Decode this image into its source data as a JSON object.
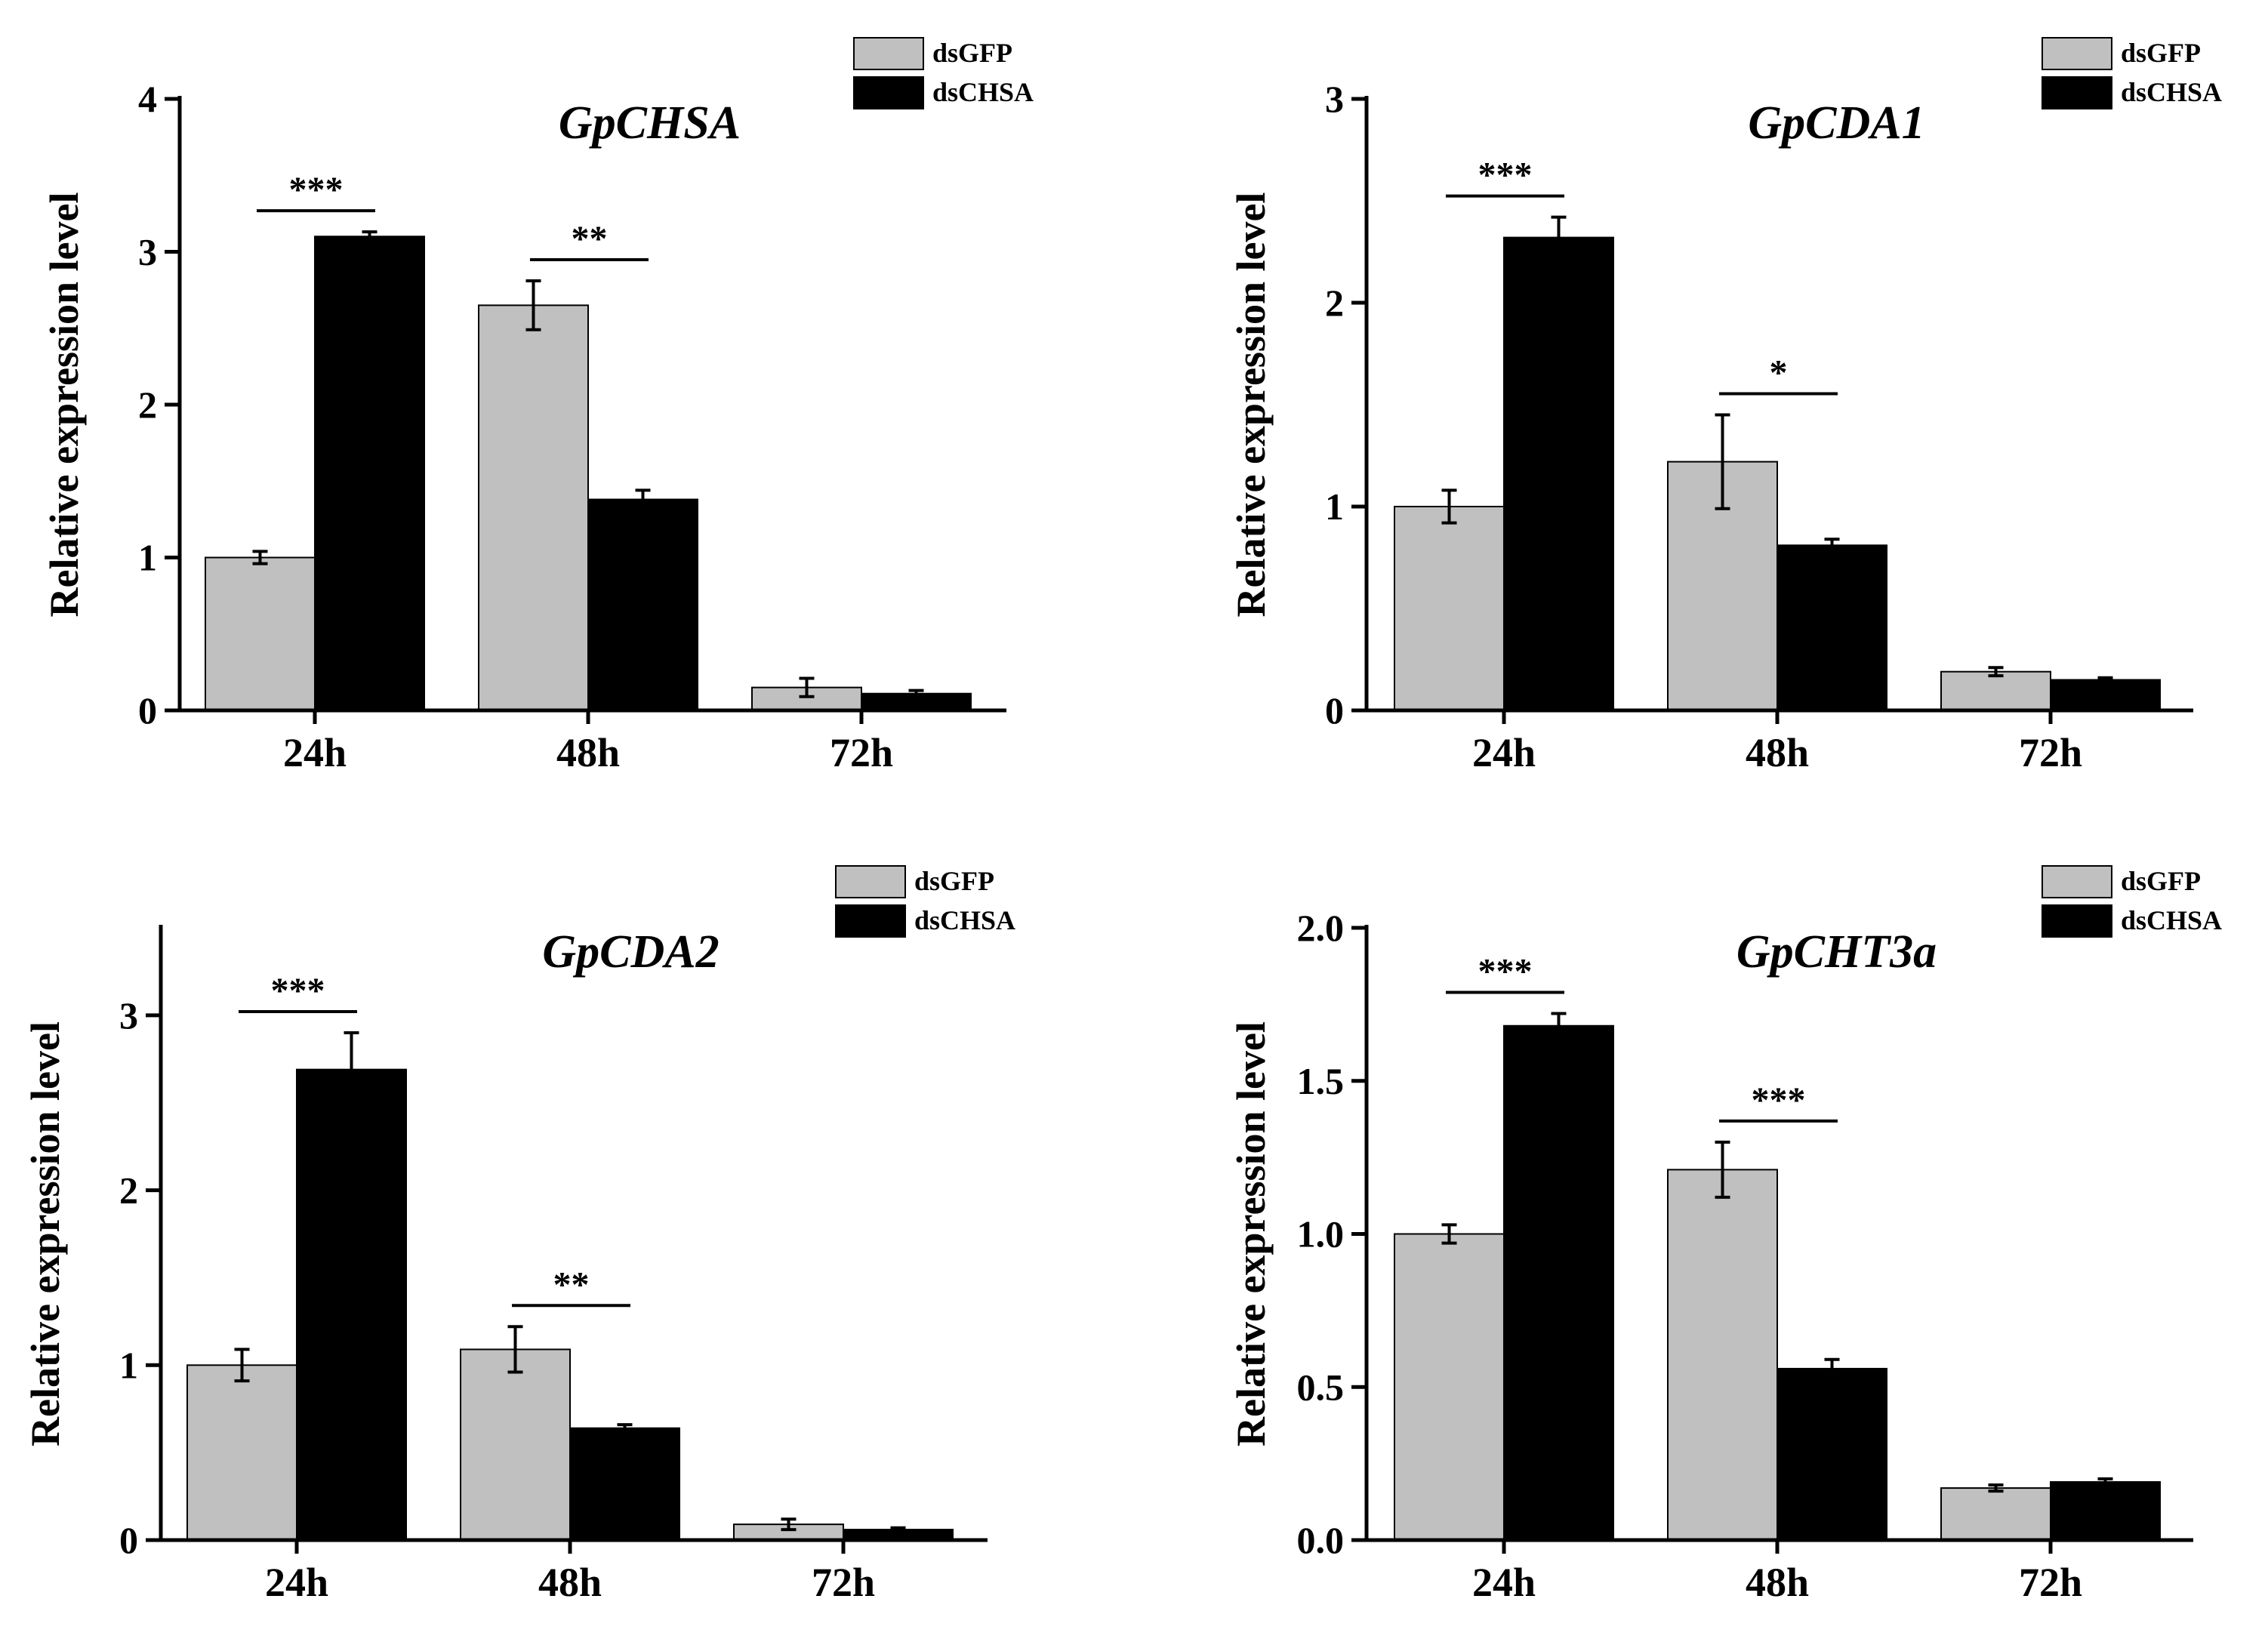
{
  "colors": {
    "dsGFP": "#c0c0c0",
    "dsCHSA": "#000000",
    "axis": "#000000"
  },
  "chart_data": [
    {
      "type": "bar",
      "title": "GpCHSA",
      "ylabel": "Relative expression level",
      "xlabel": "",
      "categories": [
        "24h",
        "48h",
        "72h"
      ],
      "ylim": [
        0,
        4
      ],
      "yticks": [
        0,
        1,
        2,
        3,
        4
      ],
      "ytick_labels": [
        "0",
        "1",
        "2",
        "3",
        "4"
      ],
      "legend": [
        "dsGFP",
        "dsCHSA"
      ],
      "legend_position": "top-right",
      "series": [
        {
          "name": "dsGFP",
          "values": [
            1.0,
            2.65,
            0.15
          ],
          "errors": [
            0.04,
            0.16,
            0.06
          ]
        },
        {
          "name": "dsCHSA",
          "values": [
            3.1,
            1.38,
            0.11
          ],
          "errors": [
            0.03,
            0.06,
            0.02
          ]
        }
      ],
      "significance": [
        {
          "category": "24h",
          "label": "***"
        },
        {
          "category": "48h",
          "label": "**"
        }
      ]
    },
    {
      "type": "bar",
      "title": "GpCDA1",
      "ylabel": "Relative expression level",
      "xlabel": "",
      "categories": [
        "24h",
        "48h",
        "72h"
      ],
      "ylim": [
        0,
        3
      ],
      "yticks": [
        0,
        1,
        2,
        3
      ],
      "ytick_labels": [
        "0",
        "1",
        "2",
        "3"
      ],
      "legend": [
        "dsGFP",
        "dsCHSA"
      ],
      "legend_position": "top-right",
      "series": [
        {
          "name": "dsGFP",
          "values": [
            1.0,
            1.22,
            0.19
          ],
          "errors": [
            0.08,
            0.23,
            0.02
          ]
        },
        {
          "name": "dsCHSA",
          "values": [
            2.32,
            0.81,
            0.15
          ],
          "errors": [
            0.1,
            0.03,
            0.01
          ]
        }
      ],
      "significance": [
        {
          "category": "24h",
          "label": "***"
        },
        {
          "category": "48h",
          "label": "*"
        }
      ]
    },
    {
      "type": "bar",
      "title": "GpCDA2",
      "ylabel": "Relative expression level",
      "xlabel": "",
      "categories": [
        "24h",
        "48h",
        "72h"
      ],
      "ylim": [
        0,
        3.5
      ],
      "yticks": [
        0,
        1,
        2,
        3
      ],
      "ytick_labels": [
        "0",
        "1",
        "2",
        "3"
      ],
      "legend": [
        "dsGFP",
        "dsCHSA"
      ],
      "legend_position": "top-right",
      "series": [
        {
          "name": "dsGFP",
          "values": [
            1.0,
            1.09,
            0.09
          ],
          "errors": [
            0.09,
            0.13,
            0.03
          ]
        },
        {
          "name": "dsCHSA",
          "values": [
            2.69,
            0.64,
            0.06
          ],
          "errors": [
            0.21,
            0.02,
            0.01
          ]
        }
      ],
      "significance": [
        {
          "category": "24h",
          "label": "***"
        },
        {
          "category": "48h",
          "label": "**"
        }
      ]
    },
    {
      "type": "bar",
      "title": "GpCHT3a",
      "ylabel": "Relative expression level",
      "xlabel": "",
      "categories": [
        "24h",
        "48h",
        "72h"
      ],
      "ylim": [
        0,
        2.0
      ],
      "yticks": [
        0,
        0.5,
        1.0,
        1.5,
        2.0
      ],
      "ytick_labels": [
        "0.0",
        "0.5",
        "1.0",
        "1.5",
        "2.0"
      ],
      "legend": [
        "dsGFP",
        "dsCHSA"
      ],
      "legend_position": "top-right",
      "series": [
        {
          "name": "dsGFP",
          "values": [
            1.0,
            1.21,
            0.17
          ],
          "errors": [
            0.03,
            0.09,
            0.01
          ]
        },
        {
          "name": "dsCHSA",
          "values": [
            1.68,
            0.56,
            0.19
          ],
          "errors": [
            0.04,
            0.03,
            0.01
          ]
        }
      ],
      "significance": [
        {
          "category": "24h",
          "label": "***"
        },
        {
          "category": "48h",
          "label": "***"
        }
      ]
    }
  ]
}
